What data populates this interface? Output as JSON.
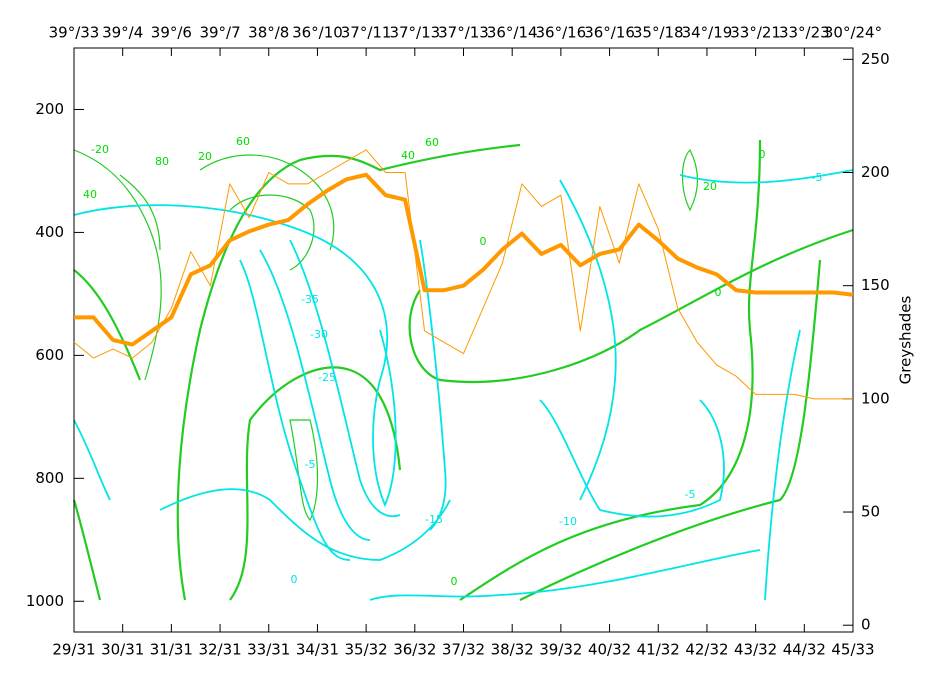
{
  "chart_data": {
    "type": "line",
    "ylabel_right": "Greyshades",
    "categories": [
      "29/31",
      "30/31",
      "31/31",
      "32/31",
      "33/31",
      "34/31",
      "35/32",
      "36/32",
      "37/32",
      "38/32",
      "39/32",
      "40/32",
      "41/32",
      "42/32",
      "43/32",
      "44/32",
      "45/33"
    ],
    "top_categories": [
      "39°/33",
      "39°/4",
      "39°/6",
      "39°/7",
      "38°/8",
      "36°/10",
      "37°/11",
      "37°/13",
      "37°/13",
      "36°/14",
      "36°/16",
      "36°/16",
      "35°/18",
      "34°/19",
      "33°/21",
      "33°/23",
      "30°/24°"
    ],
    "xlim": [
      0,
      16
    ],
    "x": [
      0,
      0.4,
      0.8,
      1.2,
      1.6,
      2.0,
      2.4,
      2.8,
      3.2,
      3.6,
      4.0,
      4.4,
      4.8,
      5.2,
      5.6,
      6.0,
      6.4,
      6.8,
      7.2,
      7.6,
      8.0,
      8.4,
      8.8,
      9.2,
      9.6,
      10.0,
      10.4,
      10.8,
      11.2,
      11.6,
      12.0,
      12.4,
      12.8,
      13.2,
      13.6,
      14.0,
      14.4,
      14.8,
      15.2,
      15.6,
      16.0
    ],
    "ylim": [
      1050,
      100
    ],
    "yticks": [
      200,
      400,
      600,
      800,
      1000
    ],
    "y2lim": [
      -3,
      255
    ],
    "y2ticks": [
      0,
      50,
      100,
      150,
      200,
      250
    ],
    "series": [
      {
        "color": "#ff9900",
        "width": 4,
        "axis": "y2",
        "values": [
          136,
          136,
          126,
          124,
          130,
          136,
          155,
          159,
          170,
          174,
          177,
          179,
          186,
          192,
          197,
          199,
          190,
          188,
          148,
          148,
          150,
          157,
          166,
          173,
          164,
          168,
          159,
          164,
          166,
          177,
          170,
          162,
          158,
          155,
          148,
          147,
          147,
          147,
          147,
          147,
          146
        ]
      },
      {
        "color": "#ff9900",
        "width": 1,
        "axis": "y2",
        "values": [
          125,
          118,
          122,
          118,
          125,
          140,
          165,
          150,
          195,
          180,
          200,
          195,
          195,
          200,
          205,
          210,
          200,
          200,
          130,
          125,
          120,
          140,
          160,
          195,
          185,
          190,
          130,
          185,
          160,
          195,
          175,
          140,
          125,
          115,
          110,
          102,
          102,
          102,
          100,
          100,
          100
        ]
      }
    ],
    "contour_labels": [
      {
        "text": "-20",
        "color": "#00dd00"
      },
      {
        "text": "40",
        "color": "#00dd00"
      },
      {
        "text": "80",
        "color": "#00dd00"
      },
      {
        "text": "20",
        "color": "#00dd00"
      },
      {
        "text": "60",
        "color": "#00dd00"
      },
      {
        "text": "40",
        "color": "#00dd00"
      },
      {
        "text": "60",
        "color": "#00dd00"
      },
      {
        "text": "0",
        "color": "#00dd00"
      },
      {
        "text": "0",
        "color": "#00dd00"
      },
      {
        "text": "0",
        "color": "#00dd00"
      },
      {
        "text": "20",
        "color": "#00dd00"
      },
      {
        "text": "0",
        "color": "#00dd00"
      },
      {
        "text": "-5",
        "color": "#00e5e5"
      },
      {
        "text": "-35",
        "color": "#00e5e5"
      },
      {
        "text": "-30",
        "color": "#00e5e5"
      },
      {
        "text": "-25",
        "color": "#00e5e5"
      },
      {
        "text": "-5",
        "color": "#00e5e5"
      },
      {
        "text": "-15",
        "color": "#00e5e5"
      },
      {
        "text": "-10",
        "color": "#00e5e5"
      },
      {
        "text": "-5",
        "color": "#00e5e5"
      },
      {
        "text": "0",
        "color": "#00e5e5"
      }
    ]
  }
}
